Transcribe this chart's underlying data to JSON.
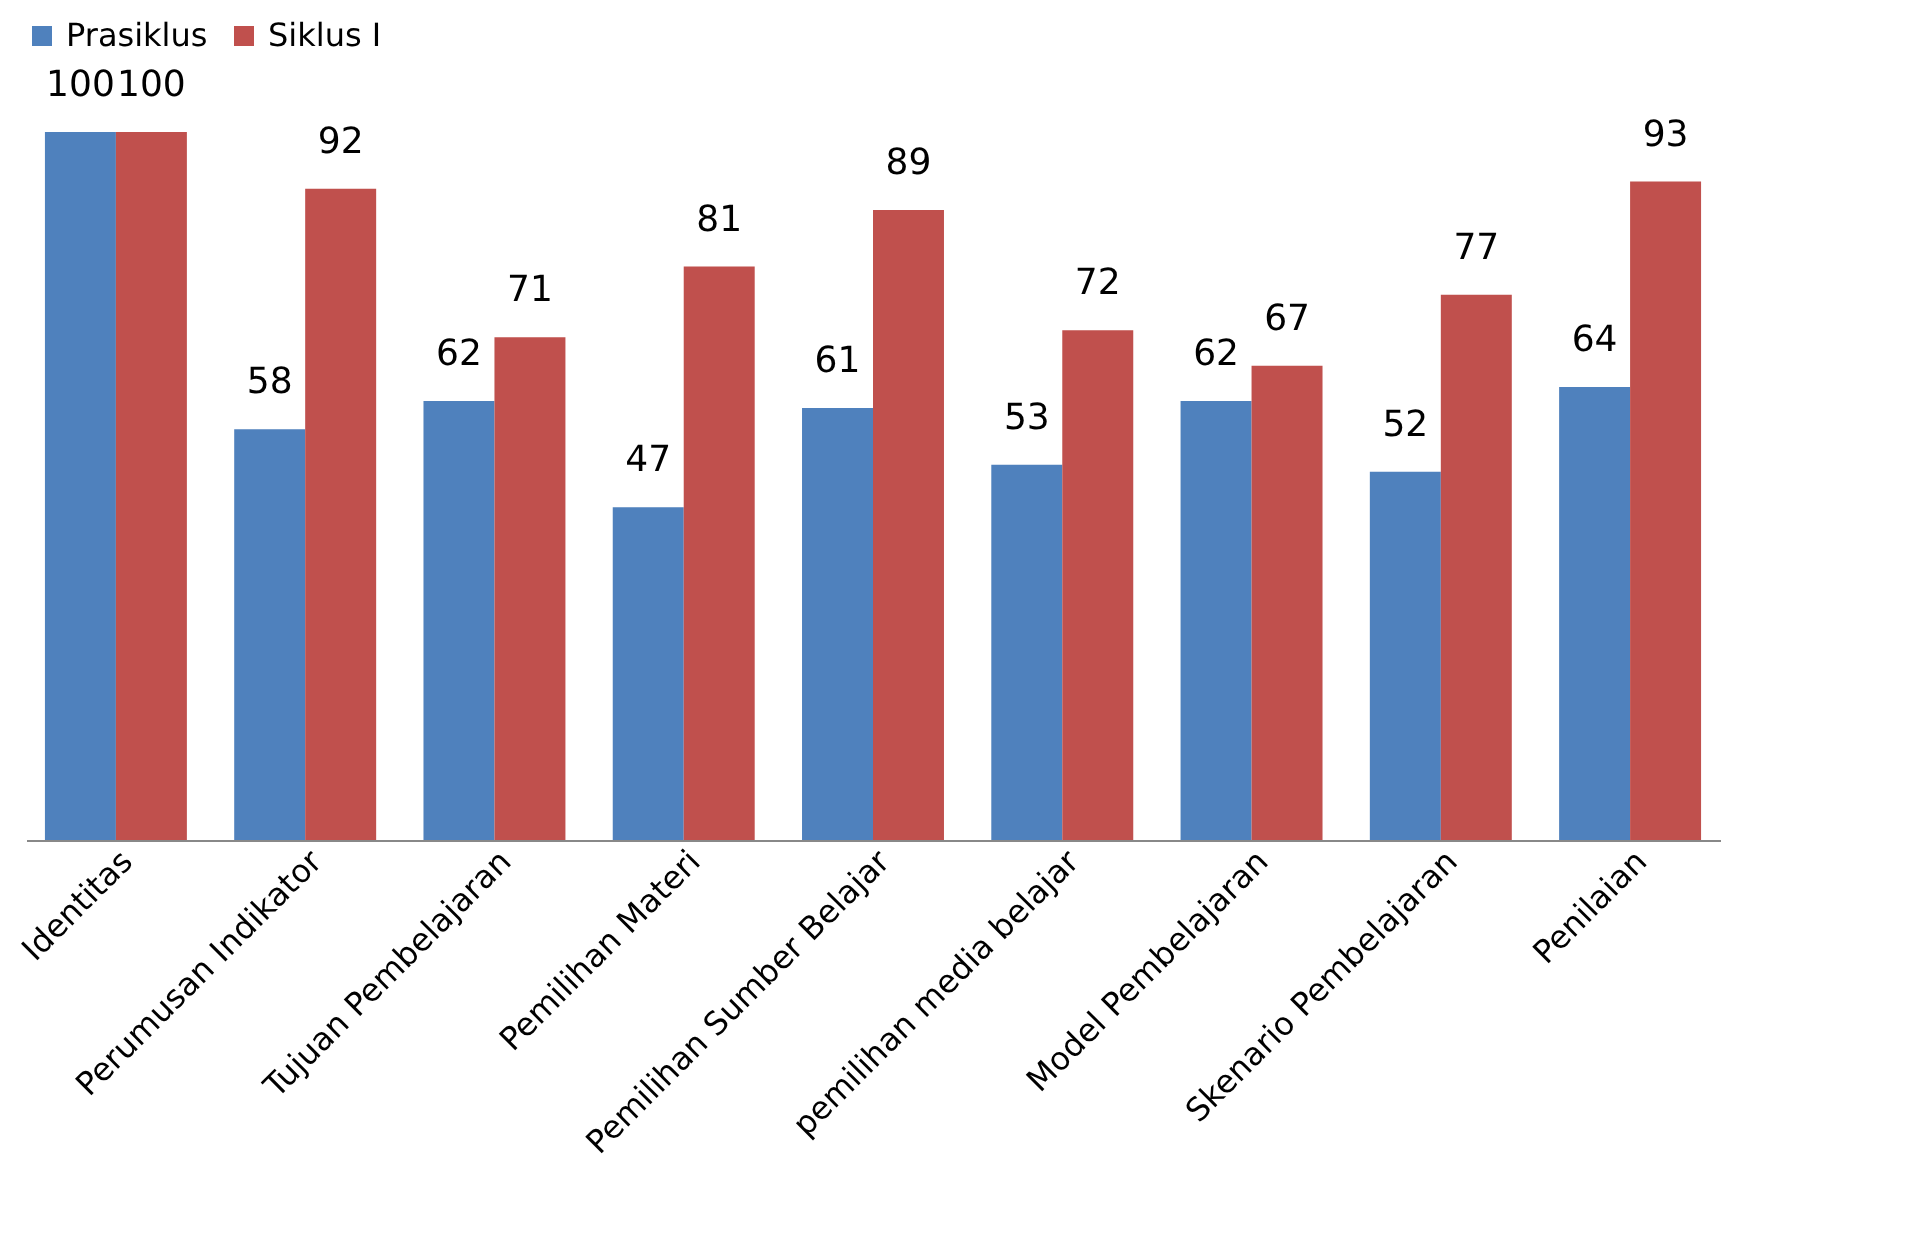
{
  "chart_data": {
    "type": "bar",
    "categories": [
      "Identitas",
      "Perumusan Indikator",
      "Tujuan Pembelajaran",
      "Pemilihan Materi",
      "Pemilihan Sumber Belajar",
      "pemilihan media belajar",
      "Model Pembelajaran",
      "Skenario Pembelajaran",
      "Penilaian"
    ],
    "series": [
      {
        "name": "Prasiklus",
        "color": "#4f81bd",
        "values": [
          100,
          58,
          62,
          47,
          61,
          53,
          62,
          52,
          64
        ]
      },
      {
        "name": "Siklus I",
        "color": "#c0504d",
        "values": [
          100,
          92,
          71,
          81,
          89,
          72,
          67,
          77,
          93
        ]
      }
    ],
    "data_labels": true,
    "legend": "top",
    "grid": false
  }
}
